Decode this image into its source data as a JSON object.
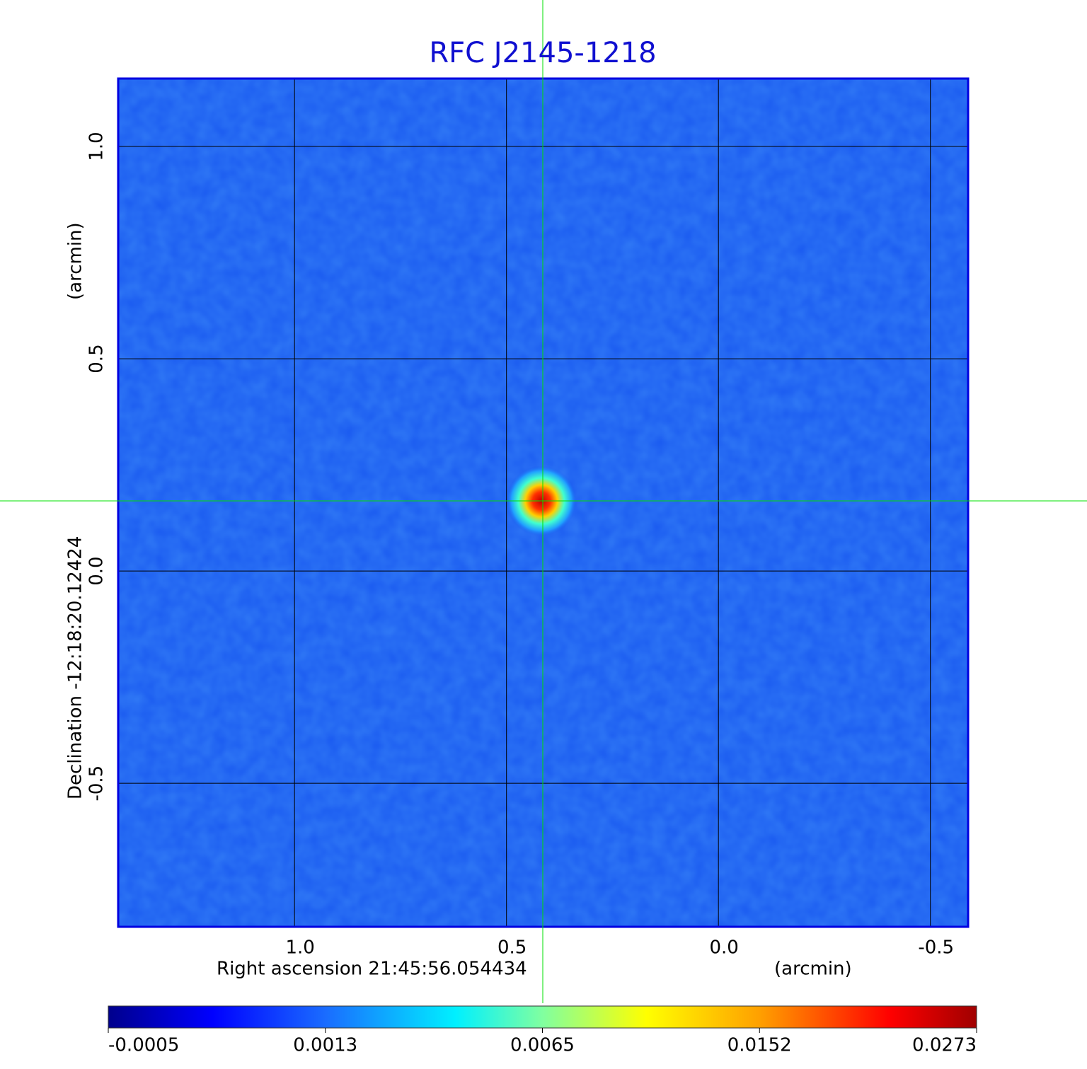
{
  "chart_data": {
    "type": "image",
    "title": "RFC J2145-1218",
    "xlabel": "Right ascension  21:45:56.054434",
    "xunit": "(arcmin)",
    "ylabel": "Declination  -12:18:20.12424",
    "yunit": "(arcmin)",
    "xlim": [
      1.416,
      -0.589
    ],
    "xticks": [
      {
        "value": 1,
        "label": "1.0"
      },
      {
        "value": 0.5,
        "label": "0.5"
      },
      {
        "value": 0,
        "label": "0.0"
      },
      {
        "value": -0.5,
        "label": "-0.5"
      }
    ],
    "ylim": [
      -0.838,
      1.16
    ],
    "yticks": [
      {
        "value": -0.5,
        "label": "-0.5"
      },
      {
        "value": 0,
        "label": "0.0"
      },
      {
        "value": 0.5,
        "label": "0.5"
      },
      {
        "value": 1,
        "label": "1.0"
      }
    ],
    "grid": true,
    "colorbar_ticks": [
      -0.0005,
      0.0013,
      0.0065,
      0.0152,
      0.0273
    ]
  }
}
